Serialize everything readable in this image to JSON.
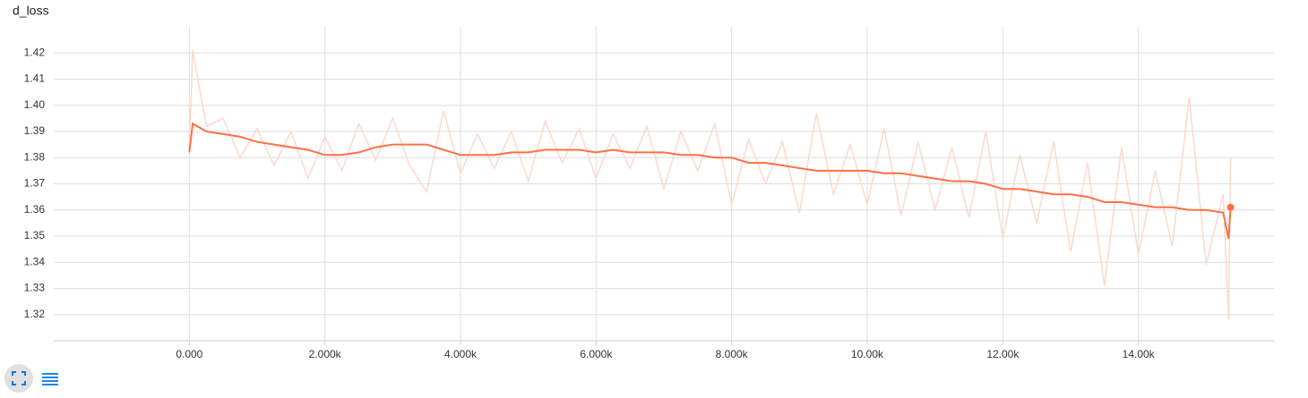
{
  "chart_data": {
    "type": "line",
    "title": "d_loss",
    "x": [
      0,
      50,
      250,
      500,
      750,
      1000,
      1250,
      1500,
      1750,
      2000,
      2250,
      2500,
      2750,
      3000,
      3250,
      3500,
      3750,
      4000,
      4250,
      4500,
      4750,
      5000,
      5250,
      5500,
      5750,
      6000,
      6250,
      6500,
      6750,
      7000,
      7250,
      7500,
      7750,
      8000,
      8250,
      8500,
      8750,
      9000,
      9250,
      9500,
      9750,
      10000,
      10250,
      10500,
      10750,
      11000,
      11250,
      11500,
      11750,
      12000,
      12250,
      12500,
      12750,
      13000,
      13250,
      13500,
      13750,
      14000,
      14250,
      14500,
      14750,
      15000,
      15250,
      15330,
      15360
    ],
    "series": [
      {
        "color": "#fcd9cc",
        "values": [
          1.383,
          1.421,
          1.392,
          1.395,
          1.38,
          1.391,
          1.377,
          1.39,
          1.372,
          1.388,
          1.375,
          1.393,
          1.379,
          1.395,
          1.377,
          1.367,
          1.398,
          1.374,
          1.389,
          1.376,
          1.39,
          1.371,
          1.394,
          1.378,
          1.391,
          1.372,
          1.389,
          1.376,
          1.392,
          1.368,
          1.39,
          1.375,
          1.393,
          1.362,
          1.387,
          1.37,
          1.386,
          1.359,
          1.397,
          1.366,
          1.385,
          1.362,
          1.391,
          1.358,
          1.386,
          1.36,
          1.384,
          1.357,
          1.39,
          1.349,
          1.381,
          1.355,
          1.386,
          1.344,
          1.378,
          1.331,
          1.384,
          1.343,
          1.375,
          1.346,
          1.403,
          1.339,
          1.366,
          1.318,
          1.38
        ]
      },
      {
        "color": "#ff7043",
        "values": [
          1.382,
          1.393,
          1.39,
          1.389,
          1.388,
          1.386,
          1.385,
          1.384,
          1.383,
          1.381,
          1.381,
          1.382,
          1.384,
          1.385,
          1.385,
          1.385,
          1.383,
          1.381,
          1.381,
          1.381,
          1.382,
          1.382,
          1.383,
          1.383,
          1.383,
          1.382,
          1.383,
          1.382,
          1.382,
          1.382,
          1.381,
          1.381,
          1.38,
          1.38,
          1.378,
          1.378,
          1.377,
          1.376,
          1.375,
          1.375,
          1.375,
          1.375,
          1.374,
          1.374,
          1.373,
          1.372,
          1.371,
          1.371,
          1.37,
          1.368,
          1.368,
          1.367,
          1.366,
          1.366,
          1.365,
          1.363,
          1.363,
          1.362,
          1.361,
          1.361,
          1.36,
          1.36,
          1.359,
          1.349,
          1.361
        ]
      }
    ],
    "xlim": [
      -2000,
      16000
    ],
    "ylim": [
      1.31,
      1.43
    ],
    "xticks": [
      {
        "value": 0,
        "label": "0.000"
      },
      {
        "value": 2000,
        "label": "2.000k"
      },
      {
        "value": 4000,
        "label": "4.000k"
      },
      {
        "value": 6000,
        "label": "6.000k"
      },
      {
        "value": 8000,
        "label": "8.000k"
      },
      {
        "value": 10000,
        "label": "10.00k"
      },
      {
        "value": 12000,
        "label": "12.00k"
      },
      {
        "value": 14000,
        "label": "14.00k"
      }
    ],
    "yticks": [
      1.32,
      1.33,
      1.34,
      1.35,
      1.36,
      1.37,
      1.38,
      1.39,
      {
        "value": 1.4,
        "label": "1.40"
      },
      1.41,
      1.42
    ],
    "grid": true
  }
}
